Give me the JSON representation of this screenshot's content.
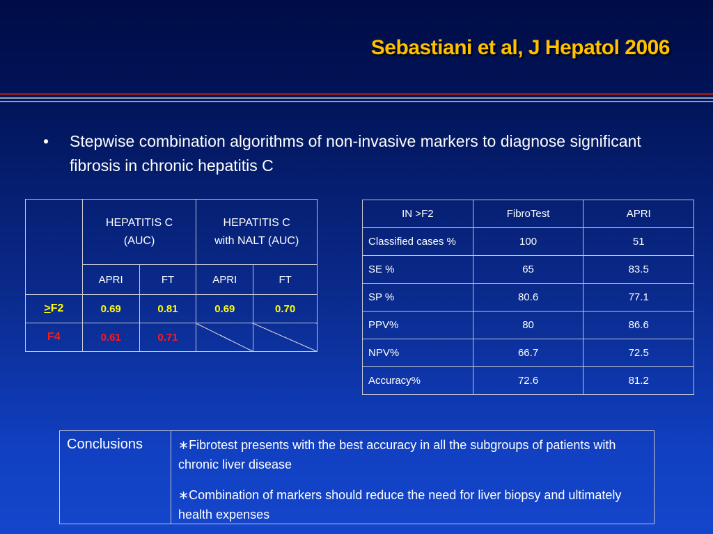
{
  "title": "Sebastiani et al, J Hepatol 2006",
  "bullet": {
    "marker": "•",
    "text": "Stepwise combination algorithms of non-invasive markers to diagnose significant fibrosis in chronic hepatitis C"
  },
  "table1": {
    "header_group1_line1": "HEPATITIS C",
    "header_group1_line2": "(AUC)",
    "header_group2_line1": "HEPATITIS C",
    "header_group2_line2": "with NALT (AUC)",
    "sub_headers": [
      "APRI",
      "FT",
      "APRI",
      "FT"
    ],
    "rows": [
      {
        "label_prefix": ">",
        "label_rest": "F2",
        "values": [
          "0.69",
          "0.81",
          "0.69",
          "0.70"
        ]
      },
      {
        "label": "F4",
        "values": [
          "0.61",
          "0.71"
        ]
      }
    ]
  },
  "table2": {
    "headers": [
      "IN  >F2",
      "FibroTest",
      "APRI"
    ],
    "rows": [
      {
        "label": "Classified cases %",
        "fibrotest": "100",
        "apri": "51"
      },
      {
        "label": "SE %",
        "fibrotest": "65",
        "apri": "83.5"
      },
      {
        "label": "SP %",
        "fibrotest": "80.6",
        "apri": "77.1"
      },
      {
        "label": "PPV%",
        "fibrotest": "80",
        "apri": "86.6"
      },
      {
        "label": "NPV%",
        "fibrotest": "66.7",
        "apri": "72.5"
      },
      {
        "label": "Accuracy%",
        "fibrotest": "72.6",
        "apri": "81.2"
      }
    ]
  },
  "conclusions": {
    "label": "Conclusions",
    "marker": "∗",
    "points": [
      "Fibrotest presents with the best accuracy in all the subgroups of patients with chronic liver disease",
      "Combination of  markers should reduce the need for liver biopsy and ultimately health expenses"
    ]
  },
  "colors": {
    "title": "#ffc000",
    "highlight_yellow": "#ffff00",
    "highlight_red": "#ff1a1a",
    "background_top": "#000c45",
    "background_bottom": "#1446cc"
  }
}
